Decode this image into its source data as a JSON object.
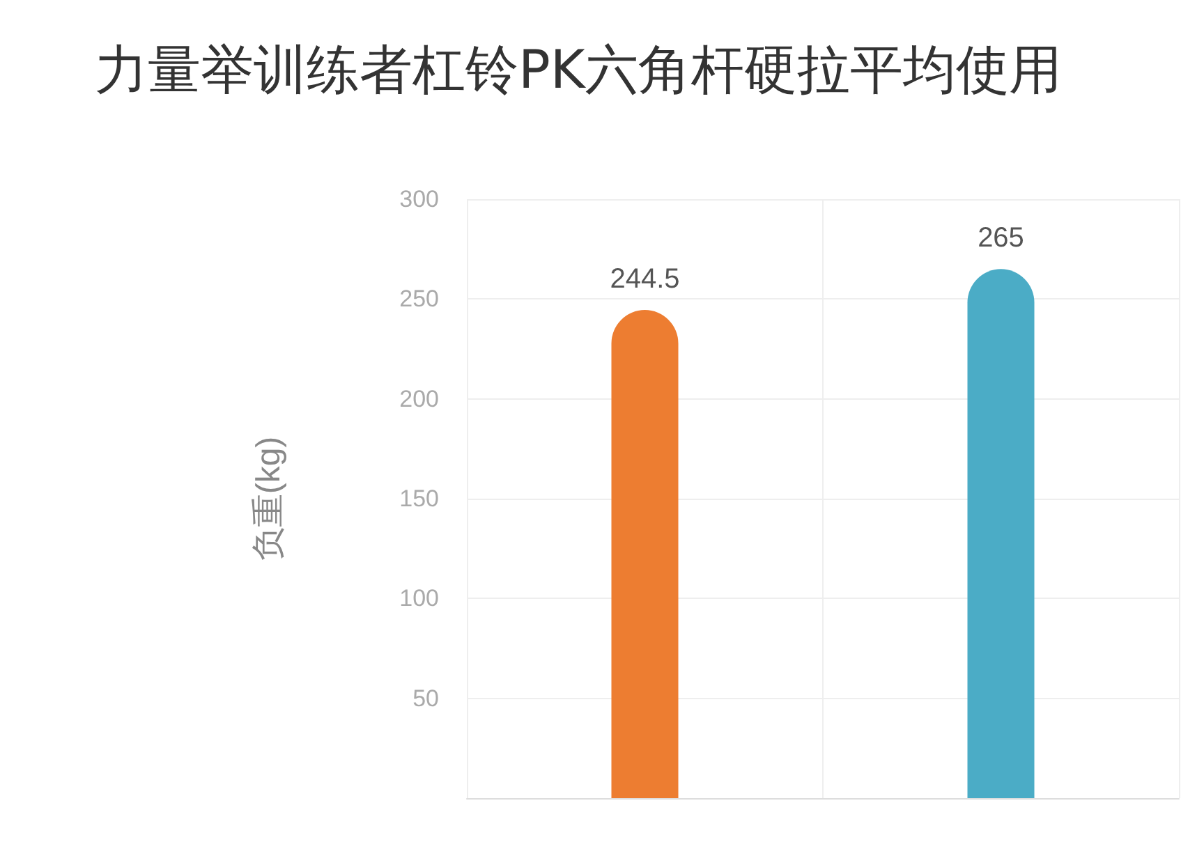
{
  "chart_data": {
    "type": "bar",
    "title": "力量举训练者杠铃PK六角杆硬拉平均使用",
    "ylabel": "负重(kg)",
    "categories": [
      null,
      null
    ],
    "values": [
      244.5,
      265
    ],
    "colors": [
      "#ed7d31",
      "#4bacc6"
    ],
    "ylim": [
      0,
      300
    ],
    "yticks": [
      50,
      100,
      150,
      200,
      250,
      300
    ],
    "grid": true,
    "data_labels": true
  }
}
